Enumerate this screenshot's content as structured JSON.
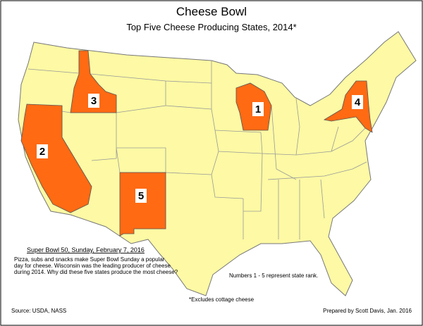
{
  "header": {
    "title": "Cheese Bowl",
    "subtitle": "Top Five Cheese Producing States, 2014*"
  },
  "ranks": [
    1,
    2,
    3,
    4,
    5
  ],
  "note": {
    "heading": "Super Bowl 50, Sunday, February 7, 2016",
    "lines": [
      "Pizza, subs and snacks make Super Bowl Sunday a popular",
      "day for cheese.  Wisconsin was the leading producer of cheese",
      "during 2014.  Why did these five states produce the most cheese?"
    ]
  },
  "legend": "Numbers 1 - 5 represent state rank.",
  "footnote": "*Excludes cottage cheese",
  "source": "Source: USDA, NASS",
  "credit": "Prepared by Scott Davis, Jan. 2016"
}
